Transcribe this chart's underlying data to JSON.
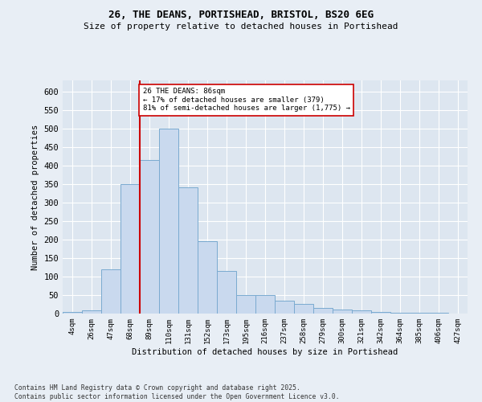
{
  "title_line1": "26, THE DEANS, PORTISHEAD, BRISTOL, BS20 6EG",
  "title_line2": "Size of property relative to detached houses in Portishead",
  "xlabel": "Distribution of detached houses by size in Portishead",
  "ylabel": "Number of detached properties",
  "bin_labels": [
    "4sqm",
    "26sqm",
    "47sqm",
    "68sqm",
    "89sqm",
    "110sqm",
    "131sqm",
    "152sqm",
    "173sqm",
    "195sqm",
    "216sqm",
    "237sqm",
    "258sqm",
    "279sqm",
    "300sqm",
    "321sqm",
    "342sqm",
    "364sqm",
    "385sqm",
    "406sqm",
    "427sqm"
  ],
  "bar_heights": [
    4,
    8,
    120,
    350,
    415,
    500,
    340,
    195,
    115,
    50,
    50,
    35,
    25,
    15,
    10,
    8,
    5,
    3,
    2,
    2,
    1
  ],
  "bar_color": "#c9d9ee",
  "bar_edge_color": "#7aaad0",
  "vline_x": 3.5,
  "vline_color": "#cc0000",
  "annotation_text": "26 THE DEANS: 86sqm\n← 17% of detached houses are smaller (379)\n81% of semi-detached houses are larger (1,775) →",
  "annotation_box_color": "#ffffff",
  "annotation_box_edge_color": "#cc0000",
  "ylim": [
    0,
    630
  ],
  "yticks": [
    0,
    50,
    100,
    150,
    200,
    250,
    300,
    350,
    400,
    450,
    500,
    550,
    600
  ],
  "background_color": "#e8eef5",
  "plot_background_color": "#dde6f0",
  "footer_text": "Contains HM Land Registry data © Crown copyright and database right 2025.\nContains public sector information licensed under the Open Government Licence v3.0."
}
